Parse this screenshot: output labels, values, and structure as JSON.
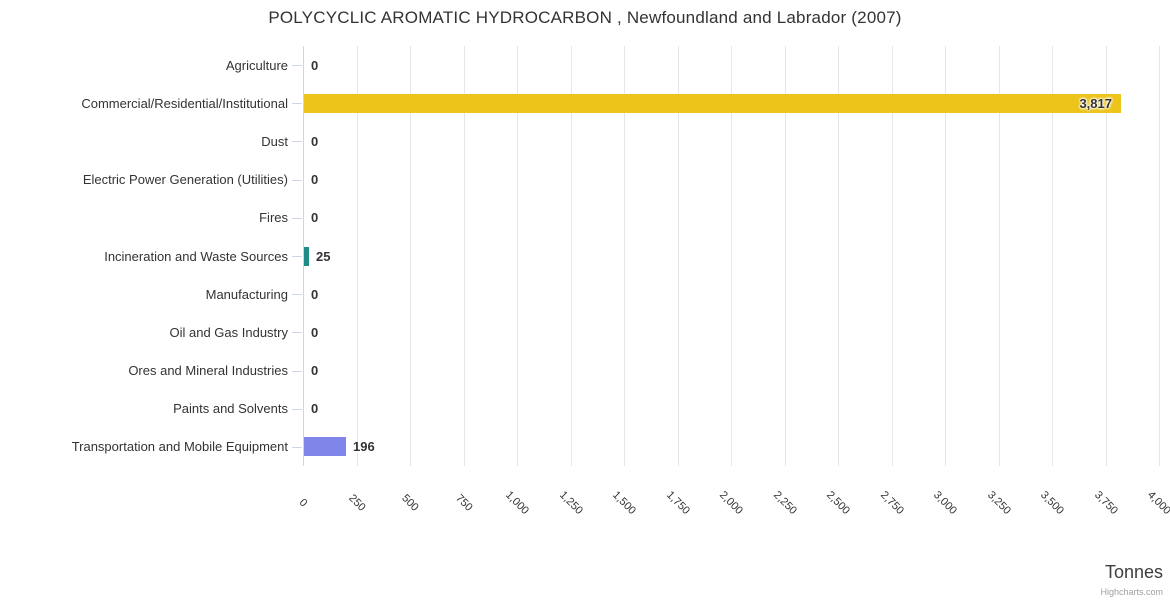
{
  "credit": "Highcharts.com",
  "chart_data": {
    "type": "bar",
    "orientation": "horizontal",
    "title": "POLYCYCLIC AROMATIC HYDROCARBON , Newfoundland and Labrador (2007)",
    "xlabel": "Tonnes",
    "ylabel": "",
    "categories": [
      "Agriculture",
      "Commercial/Residential/Institutional",
      "Dust",
      "Electric Power Generation (Utilities)",
      "Fires",
      "Incineration and Waste Sources",
      "Manufacturing",
      "Oil and Gas Industry",
      "Ores and Mineral Industries",
      "Paints and Solvents",
      "Transportation and Mobile Equipment"
    ],
    "values": [
      0,
      3817,
      0,
      0,
      0,
      25,
      0,
      0,
      0,
      0,
      196
    ],
    "value_labels": [
      "0",
      "3,817",
      "0",
      "0",
      "0",
      "25",
      "0",
      "0",
      "0",
      "0",
      "196"
    ],
    "bar_colors": [
      null,
      "#ecc41a",
      null,
      null,
      null,
      "#218c85",
      null,
      null,
      null,
      null,
      "#8085e9"
    ],
    "xlim": [
      0,
      4000
    ],
    "x_tick_step": 250,
    "x_tick_labels": [
      "0",
      "250",
      "500",
      "750",
      "1,000",
      "1,250",
      "1,500",
      "1,750",
      "2,000",
      "2,250",
      "2,500",
      "2,750",
      "3,000",
      "3,250",
      "3,500",
      "3,750",
      "4,000"
    ],
    "grid": true,
    "legend": false,
    "colors": {
      "grid": "#e6e6e6",
      "axis_line": "#ccd6eb",
      "text": "#333333",
      "axis_title_text": "#3e3e3e",
      "credit_text": "#a0a0a0"
    }
  }
}
